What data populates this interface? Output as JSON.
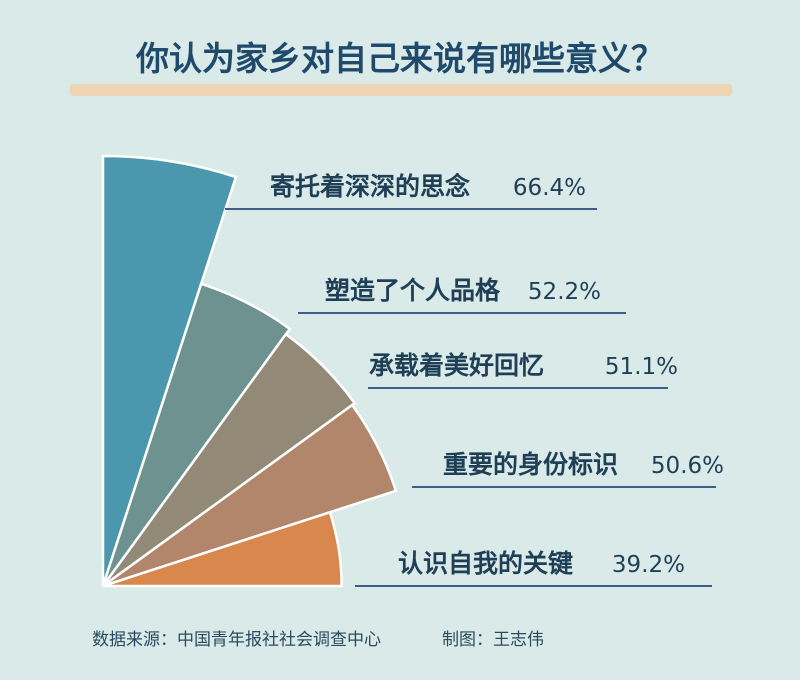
{
  "chart_data": {
    "type": "pie",
    "title": "你认为家乡对自己来说有哪些意义？",
    "categories": [
      "寄托着深深的思念",
      "塑造了个人品格",
      "承载着美好回忆",
      "重要的身份标识",
      "认识自我的关键"
    ],
    "values": [
      66.4,
      52.2,
      51.1,
      50.6,
      39.2
    ],
    "value_labels": [
      "66.4%",
      "52.2%",
      "51.1%",
      "50.6%",
      "39.2%"
    ],
    "colors": [
      "#4b97ad",
      "#6e9290",
      "#928a77",
      "#b1866b",
      "#d8874d"
    ]
  },
  "footer": {
    "source": "数据来源：中国青年报社社会调查中心",
    "author": "制图：王志伟"
  },
  "colors": {
    "background": "#d9eae8",
    "title_underline": "#edd5b3",
    "leader_line": "#3d5f86"
  }
}
